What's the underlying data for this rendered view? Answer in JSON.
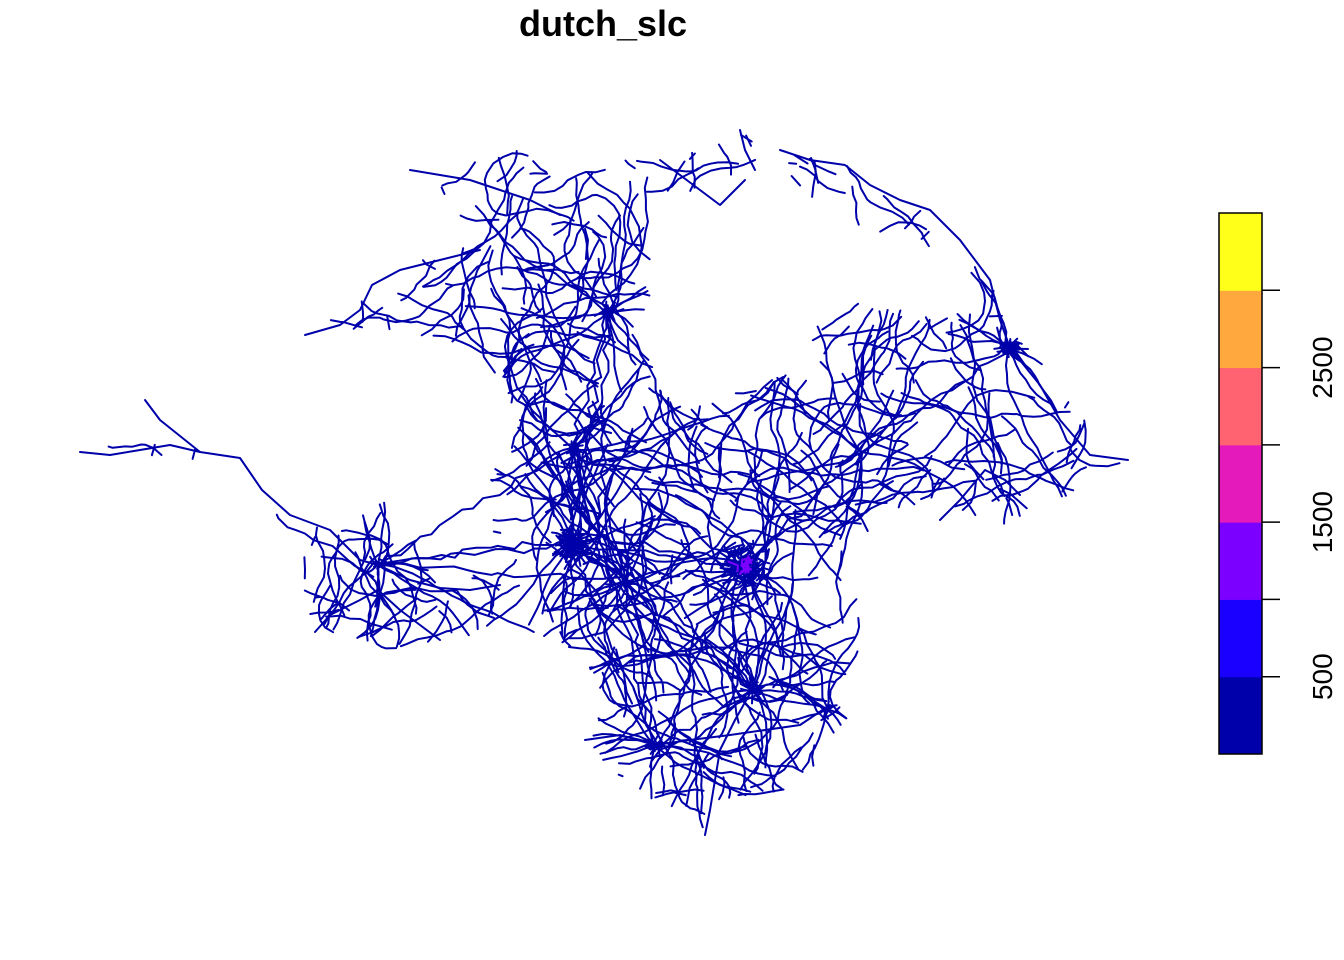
{
  "map": {
    "title": "dutch_slc",
    "layer_type": "road network (lines)",
    "line_color": "#0000AA",
    "hotspot_color": "#7B00FF"
  },
  "legend": {
    "bins": [
      {
        "color": "#0000AA"
      },
      {
        "color": "#1A00FF"
      },
      {
        "color": "#7B00FF"
      },
      {
        "color": "#E41ABA"
      },
      {
        "color": "#FF6371"
      },
      {
        "color": "#FFA83E"
      },
      {
        "color": "#FFFF1A"
      }
    ],
    "ticks": [
      {
        "value": 500,
        "label": "500"
      },
      {
        "value": 1000,
        "label": ""
      },
      {
        "value": 1500,
        "label": "1500"
      },
      {
        "value": 2000,
        "label": ""
      },
      {
        "value": 2500,
        "label": "2500"
      },
      {
        "value": 3000,
        "label": ""
      }
    ],
    "range": [
      0,
      3500
    ]
  }
}
